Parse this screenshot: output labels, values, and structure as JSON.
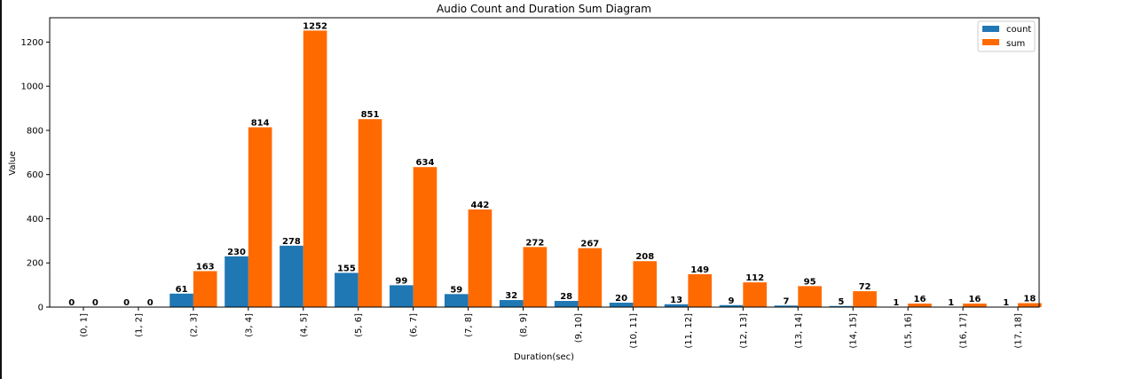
{
  "chart_data": {
    "type": "bar",
    "title": "Audio Count and Duration Sum Diagram",
    "xlabel": "Duration(sec)",
    "ylabel": "Value",
    "categories": [
      "(0, 1]",
      "(1, 2]",
      "(2, 3]",
      "(3, 4]",
      "(4, 5]",
      "(5, 6]",
      "(6, 7]",
      "(7, 8]",
      "(8, 9]",
      "(9, 10]",
      "(10, 11]",
      "(11, 12]",
      "(12, 13]",
      "(13, 14]",
      "(14, 15]",
      "(15, 16]",
      "(16, 17]",
      "(17, 18]"
    ],
    "series": [
      {
        "name": "count",
        "color": "#1f77b4",
        "values": [
          0,
          0,
          61,
          230,
          278,
          155,
          99,
          59,
          32,
          28,
          20,
          13,
          9,
          7,
          5,
          1,
          1,
          1
        ]
      },
      {
        "name": "sum",
        "color": "#ff6a00",
        "values": [
          0,
          0,
          163,
          814,
          1252,
          851,
          634,
          442,
          272,
          267,
          208,
          149,
          112,
          95,
          72,
          16,
          16,
          18
        ]
      }
    ],
    "ylim": [
      0,
      1310
    ],
    "yticks": [
      0,
      200,
      400,
      600,
      800,
      1000,
      1200
    ],
    "grid": false,
    "legend": "top-right"
  }
}
